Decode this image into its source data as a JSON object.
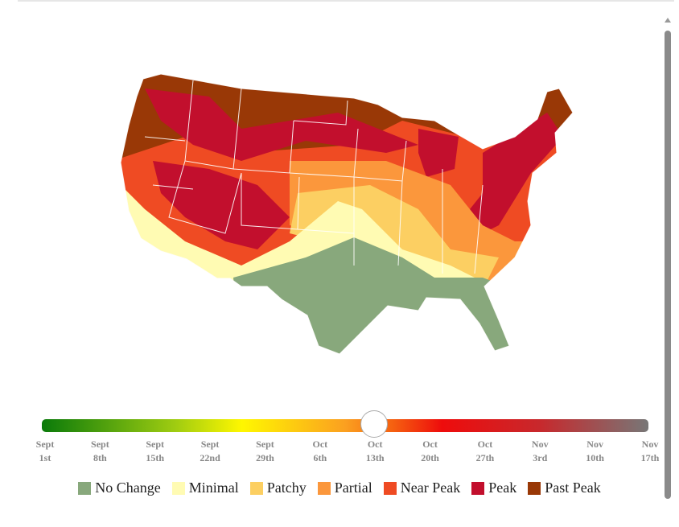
{
  "slider": {
    "dates": [
      {
        "month": "Sept",
        "day": "1st"
      },
      {
        "month": "Sept",
        "day": "8th"
      },
      {
        "month": "Sept",
        "day": "15th"
      },
      {
        "month": "Sept",
        "day": "22nd"
      },
      {
        "month": "Sept",
        "day": "29th"
      },
      {
        "month": "Oct",
        "day": "6th"
      },
      {
        "month": "Oct",
        "day": "13th"
      },
      {
        "month": "Oct",
        "day": "20th"
      },
      {
        "month": "Oct",
        "day": "27th"
      },
      {
        "month": "Nov",
        "day": "3rd"
      },
      {
        "month": "Nov",
        "day": "10th"
      },
      {
        "month": "Nov",
        "day": "17th"
      }
    ]
  },
  "legend": [
    {
      "label": "No Change",
      "color": "#88a87c"
    },
    {
      "label": "Minimal",
      "color": "#fffbb3"
    },
    {
      "label": "Patchy",
      "color": "#fccf62"
    },
    {
      "label": "Partial",
      "color": "#fb973c"
    },
    {
      "label": "Near Peak",
      "color": "#ef4b23"
    },
    {
      "label": "Peak",
      "color": "#c20f2d"
    },
    {
      "label": "Past Peak",
      "color": "#993806"
    }
  ]
}
